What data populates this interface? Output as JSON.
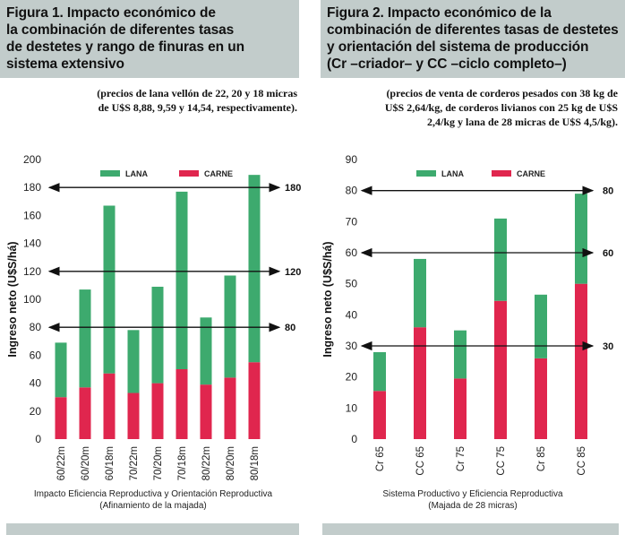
{
  "figure1": {
    "title_lines": [
      "Figura 1. Impacto económico de",
      "la combinación de diferentes tasas",
      "de destetes y rango de finuras en un",
      "sistema extensivo"
    ],
    "subtitle_lines": [
      "(precios de lana vellón de 22, 20 y 18 micras",
      "de U$S 8,88, 9,59 y 14,54, respectivamente)."
    ]
  },
  "figure2": {
    "title_lines": [
      "Figura 2. Impacto económico de la",
      "combinación de diferentes tasas de destetes",
      "y orientación del sistema de producción",
      "(Cr –criador– y CC –ciclo completo–)"
    ],
    "subtitle_lines": [
      "(precios de venta de corderos pesados con 38 kg de",
      "U$S 2,64/kg, de corderos livianos con 25 kg de U$S",
      "2,4/kg y lana de 28 micras de U$S 4,5/kg)."
    ]
  },
  "colors": {
    "lana": "#3daa6e",
    "carne": "#e0264e",
    "title_bg": "#c2cccb"
  },
  "chart_data": [
    {
      "type": "bar",
      "stacked": true,
      "ylabel": "Ingreso neto (U$S/há)",
      "xlabel_lines": [
        "Impacto Eficiencia Reproductiva y Orientación Reproductiva",
        "(Afinamiento de la majada)"
      ],
      "categories": [
        "60/22m",
        "60/20m",
        "60/18m",
        "70/22m",
        "70/20m",
        "70/18m",
        "80/22m",
        "80/20m",
        "80/18m"
      ],
      "series": [
        {
          "name": "CARNE",
          "values": [
            30,
            37,
            47,
            33,
            40,
            50,
            39,
            44,
            55
          ]
        },
        {
          "name": "LANA",
          "values": [
            39,
            70,
            120,
            45,
            69,
            127,
            48,
            73,
            134
          ]
        }
      ],
      "ylim": [
        0,
        200
      ],
      "yticks": [
        0,
        20,
        40,
        60,
        80,
        100,
        120,
        140,
        160,
        180,
        200
      ],
      "reference_lines": [
        180,
        120,
        80
      ],
      "reference_labels": [
        "180",
        "120",
        "80"
      ],
      "legend": [
        "LANA",
        "CARNE"
      ]
    },
    {
      "type": "bar",
      "stacked": true,
      "ylabel": "Ingreso neto (U$S/há)",
      "xlabel_lines": [
        "Sistema Productivo y Eficiencia Reproductiva",
        "(Majada de 28 micras)"
      ],
      "categories": [
        "Cr 65",
        "CC 65",
        "Cr 75",
        "CC 75",
        "Cr 85",
        "CC 85"
      ],
      "series": [
        {
          "name": "CARNE",
          "values": [
            15.5,
            36,
            19.5,
            44.5,
            26,
            50
          ]
        },
        {
          "name": "LANA",
          "values": [
            12.5,
            22,
            15.5,
            26.5,
            20.5,
            29
          ]
        }
      ],
      "ylim": [
        0,
        90
      ],
      "yticks": [
        0,
        10,
        20,
        30,
        40,
        50,
        60,
        70,
        80,
        90
      ],
      "reference_lines": [
        80,
        60,
        30
      ],
      "reference_labels": [
        "80",
        "60",
        "30"
      ],
      "legend": [
        "LANA",
        "CARNE"
      ]
    }
  ]
}
